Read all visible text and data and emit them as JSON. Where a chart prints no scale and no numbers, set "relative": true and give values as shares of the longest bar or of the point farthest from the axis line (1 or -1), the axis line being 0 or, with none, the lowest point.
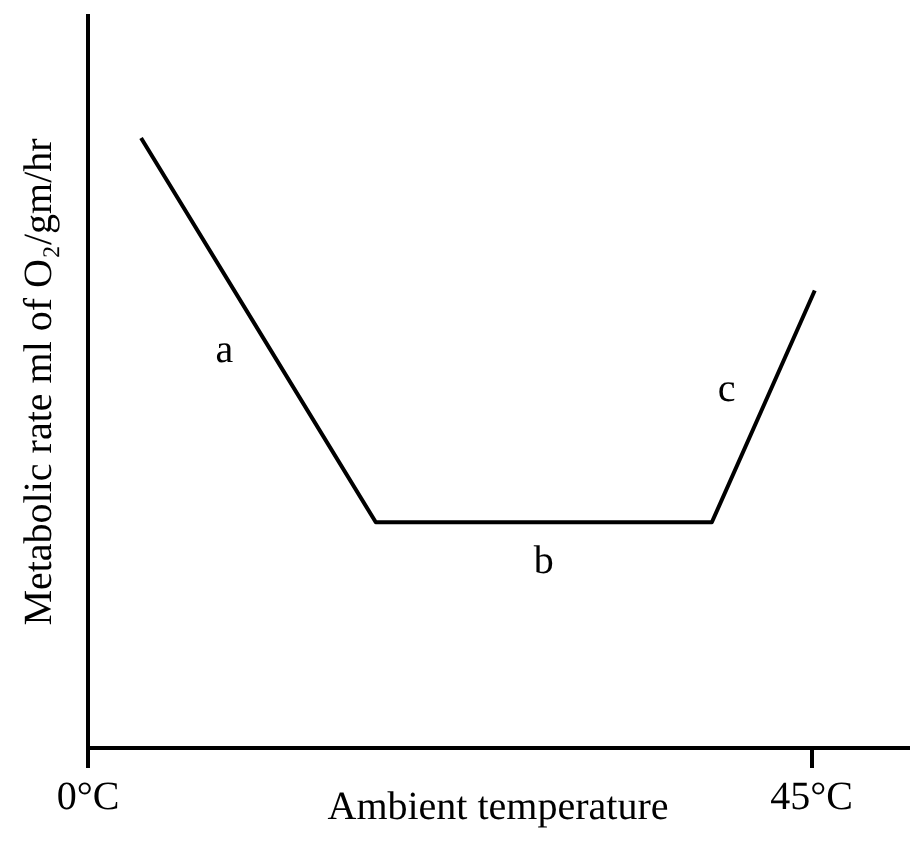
{
  "chart_data": {
    "type": "line",
    "relative": true,
    "xlabel": "Ambient temperature",
    "ylabel": "Metabolic rate ml of O₂/gm/hr",
    "x": [
      3.3,
      17.9,
      38.8,
      45.2
    ],
    "series": [
      {
        "color": "#000000",
        "values": [
          1,
          0.37,
          0.37,
          0.75
        ]
      }
    ],
    "xlim": [
      0,
      51
    ],
    "xticks": [
      {
        "value": 0,
        "label": "0°C"
      },
      {
        "value": 45,
        "label": "45°C"
      }
    ],
    "annotations": [
      "a",
      "b",
      "c"
    ],
    "grid": false,
    "legend": false,
    "marker": "none",
    "line_style": "solid"
  }
}
